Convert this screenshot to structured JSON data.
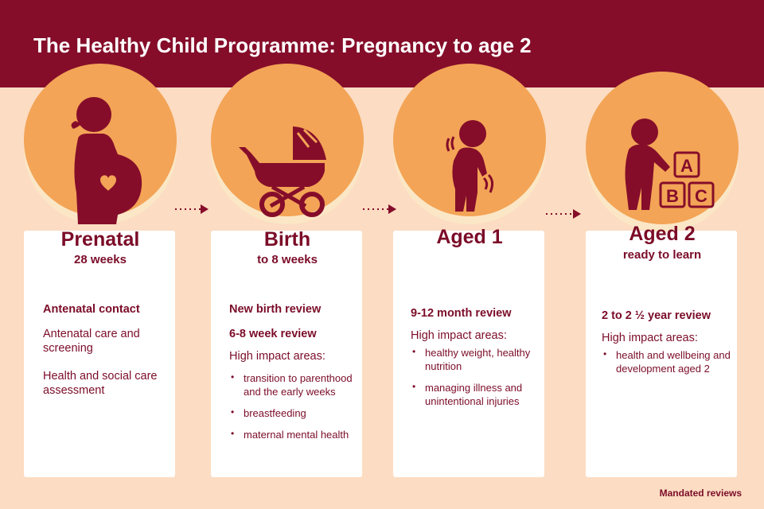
{
  "title": "The Healthy Child Programme: Pregnancy to age 2",
  "footnote": "Mandated reviews",
  "colors": {
    "header": "#850d2a",
    "background": "#fcdcc2",
    "circle": "#f3a456",
    "text": "#7b0c28",
    "card": "#ffffff"
  },
  "stages": [
    {
      "icon": "pregnant-woman-icon",
      "label": "Prenatal",
      "sublabel": "28 weeks",
      "reviews": [
        "Antenatal contact"
      ],
      "notes": [
        "Antenatal care and screening",
        "Health and social care assessment"
      ]
    },
    {
      "icon": "pram-icon",
      "label": "Birth",
      "sublabel": "to 8 weeks",
      "reviews": [
        "New birth review",
        "6-8 week review"
      ],
      "impact_heading": "High impact areas:",
      "impact_areas": [
        "transition to parenthood and the early weeks",
        "breastfeeding",
        "maternal mental health"
      ]
    },
    {
      "icon": "toddler-walking-icon",
      "label": "Aged 1",
      "sublabel": "",
      "reviews": [
        "9-12 month review"
      ],
      "impact_heading": "High impact areas:",
      "impact_areas": [
        "healthy weight, healthy nutrition",
        "managing illness and unintentional injuries"
      ]
    },
    {
      "icon": "child-with-abc-blocks-icon",
      "label": "Aged 2",
      "sublabel": "ready to learn",
      "reviews": [
        "2 to 2 ½ year review"
      ],
      "impact_heading": "High impact areas:",
      "impact_areas": [
        "health and wellbeing and development aged 2"
      ],
      "blocks": [
        "A",
        "B",
        "C"
      ]
    }
  ]
}
